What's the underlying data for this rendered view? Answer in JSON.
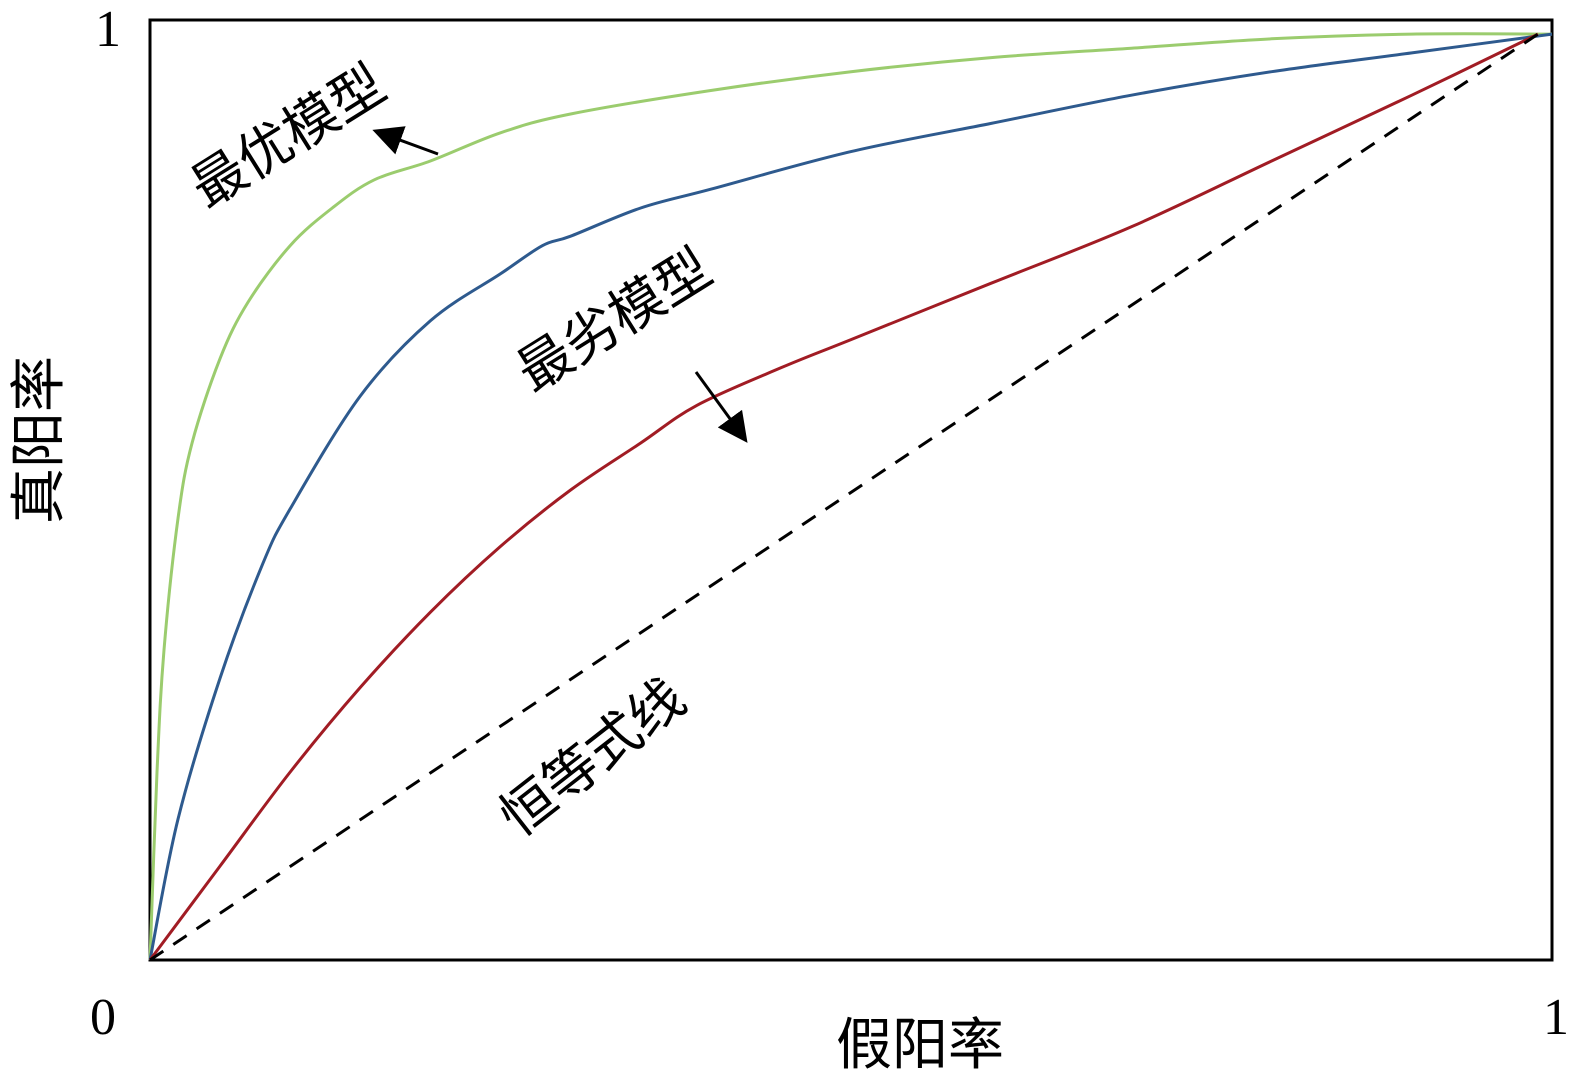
{
  "chart_data": {
    "type": "line",
    "title": "",
    "xlabel": "假阳率",
    "ylabel": "真阳率",
    "xlim": [
      0,
      1
    ],
    "ylim": [
      0,
      1
    ],
    "x_ticks": [
      "0",
      "1"
    ],
    "y_ticks": [
      "1"
    ],
    "grid": false,
    "legend": "none",
    "series": [
      {
        "color": "#9bcc6e",
        "style": "solid",
        "x": [
          0,
          0.005,
          0.01,
          0.02,
          0.03,
          0.05,
          0.07,
          0.1,
          0.13,
          0.16,
          0.2,
          0.25,
          0.3,
          0.4,
          0.5,
          0.6,
          0.7,
          0.8,
          0.9,
          1.0
        ],
        "values": [
          0,
          0.2,
          0.33,
          0.47,
          0.55,
          0.64,
          0.7,
          0.76,
          0.8,
          0.83,
          0.85,
          0.88,
          0.9,
          0.925,
          0.945,
          0.96,
          0.97,
          0.98,
          0.985,
          0.985
        ]
      },
      {
        "color": "#2e5a8e",
        "style": "solid",
        "x": [
          0,
          0.02,
          0.05,
          0.08,
          0.1,
          0.15,
          0.2,
          0.25,
          0.28,
          0.3,
          0.35,
          0.4,
          0.5,
          0.6,
          0.7,
          0.8,
          0.9,
          1.0
        ],
        "values": [
          0,
          0.15,
          0.3,
          0.42,
          0.48,
          0.6,
          0.68,
          0.73,
          0.76,
          0.77,
          0.8,
          0.82,
          0.86,
          0.89,
          0.92,
          0.945,
          0.965,
          0.985
        ]
      },
      {
        "color": "#a11c24",
        "style": "solid",
        "x": [
          0,
          0.05,
          0.1,
          0.15,
          0.2,
          0.25,
          0.3,
          0.35,
          0.39,
          0.45,
          0.5,
          0.6,
          0.7,
          0.8,
          0.9,
          0.99
        ],
        "values": [
          0,
          0.1,
          0.2,
          0.29,
          0.37,
          0.44,
          0.5,
          0.55,
          0.59,
          0.63,
          0.66,
          0.72,
          0.78,
          0.85,
          0.92,
          0.985
        ]
      },
      {
        "color": "#000000",
        "style": "dashed",
        "x": [
          0,
          0.99
        ],
        "values": [
          0,
          0.985
        ]
      }
    ],
    "annotations": [
      {
        "text": "最优模型"
      },
      {
        "text": "最劣模型"
      },
      {
        "text": "恒等式线"
      }
    ]
  }
}
